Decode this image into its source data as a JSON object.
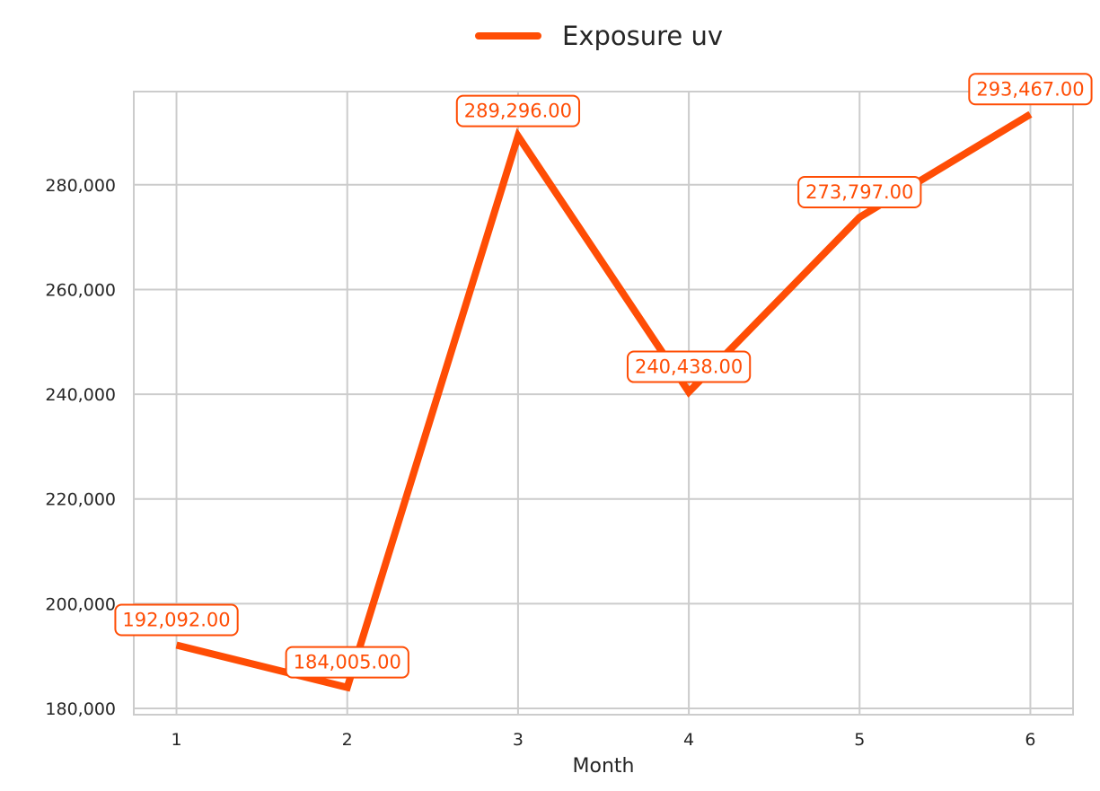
{
  "chart_data": {
    "type": "line",
    "title": "",
    "xlabel": "Month",
    "ylabel": "",
    "x": [
      1,
      2,
      3,
      4,
      5,
      6
    ],
    "x_tick_labels": [
      "1",
      "2",
      "3",
      "4",
      "5",
      "6"
    ],
    "y_tick_values": [
      180000,
      200000,
      220000,
      240000,
      260000,
      280000
    ],
    "y_tick_labels": [
      "180,000",
      "200,000",
      "220,000",
      "240,000",
      "260,000",
      "280,000"
    ],
    "xlim": [
      0.75,
      6.25
    ],
    "ylim": [
      178800,
      297800
    ],
    "grid": true,
    "legend_position": "top-center",
    "series": [
      {
        "name": "Exposure uv",
        "color": "#ff4d05",
        "values": [
          192092.0,
          184005.0,
          289296.0,
          240438.0,
          273797.0,
          293467.0
        ],
        "data_labels": [
          "192,092.00",
          "184,005.00",
          "289,296.00",
          "240,438.00",
          "273,797.00",
          "293,467.00"
        ]
      }
    ]
  }
}
